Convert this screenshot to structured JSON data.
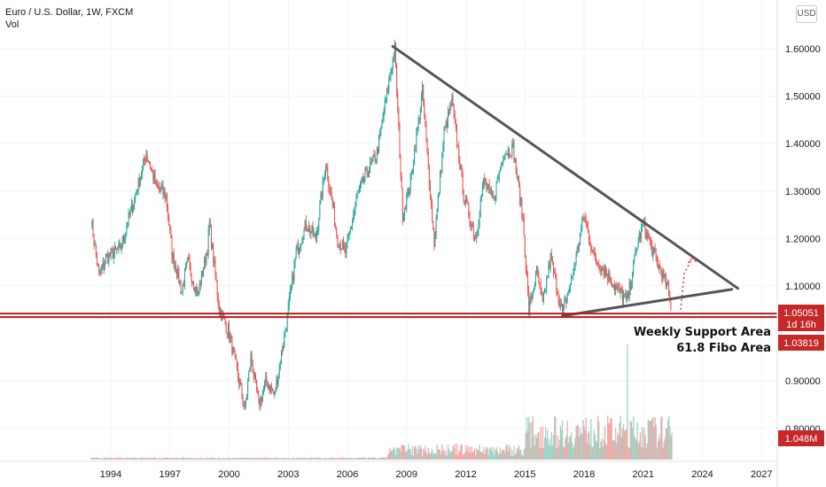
{
  "header": {
    "title": "Euro / U.S. Dollar, 1W, FXCM",
    "subtitle": "Vol"
  },
  "currency_button": "USD",
  "colors": {
    "up": "#26a69a",
    "down": "#ef5350",
    "trendline": "#555555",
    "support": "#b71c1c",
    "badge": "#c62828",
    "vol_up": "#9fd3c7",
    "vol_down": "#f5a7a5"
  },
  "price_badges": [
    {
      "value": "1.05051",
      "sub": "1d 16h"
    },
    {
      "value": "1.03819",
      "sub": ""
    },
    {
      "value": "1.048M",
      "sub": ""
    }
  ],
  "annotations": [
    "Weekly Support Area",
    "61.8 Fibo Area"
  ],
  "chart_data": {
    "type": "candlestick",
    "title": "Euro / U.S. Dollar, 1W, FXCM",
    "ylim": [
      0.78,
      1.65
    ],
    "y_ticks": [
      "1.60000",
      "1.50000",
      "1.40000",
      "1.30000",
      "1.20000",
      "1.10000",
      "0.90000",
      "0.80000"
    ],
    "x_ticks": [
      "1994",
      "1997",
      "2000",
      "2003",
      "2006",
      "2009",
      "2012",
      "2015",
      "2018",
      "2021",
      "2024",
      "2027"
    ],
    "xlim": [
      1993.2,
      2027.8
    ],
    "price_path": [
      [
        1993.0,
        1.24
      ],
      [
        1993.4,
        1.12
      ],
      [
        1993.8,
        1.16
      ],
      [
        1994.5,
        1.18
      ],
      [
        1995.3,
        1.3
      ],
      [
        1995.8,
        1.38
      ],
      [
        1996.3,
        1.31
      ],
      [
        1996.8,
        1.29
      ],
      [
        1997.1,
        1.17
      ],
      [
        1997.6,
        1.09
      ],
      [
        1997.9,
        1.15
      ],
      [
        1998.4,
        1.08
      ],
      [
        1998.9,
        1.18
      ],
      [
        1999.0,
        1.23
      ],
      [
        1999.5,
        1.05
      ],
      [
        2000.0,
        1.0
      ],
      [
        2000.4,
        0.92
      ],
      [
        2000.8,
        0.84
      ],
      [
        2001.1,
        0.95
      ],
      [
        2001.5,
        0.85
      ],
      [
        2001.9,
        0.9
      ],
      [
        2002.3,
        0.87
      ],
      [
        2002.9,
        1.02
      ],
      [
        2003.4,
        1.17
      ],
      [
        2003.9,
        1.23
      ],
      [
        2004.4,
        1.2
      ],
      [
        2004.9,
        1.36
      ],
      [
        2005.5,
        1.2
      ],
      [
        2005.9,
        1.17
      ],
      [
        2006.5,
        1.29
      ],
      [
        2006.9,
        1.33
      ],
      [
        2007.5,
        1.38
      ],
      [
        2007.9,
        1.48
      ],
      [
        2008.4,
        1.6
      ],
      [
        2008.8,
        1.25
      ],
      [
        2009.2,
        1.32
      ],
      [
        2009.8,
        1.51
      ],
      [
        2010.4,
        1.19
      ],
      [
        2010.9,
        1.42
      ],
      [
        2011.3,
        1.49
      ],
      [
        2011.9,
        1.29
      ],
      [
        2012.5,
        1.2
      ],
      [
        2012.9,
        1.32
      ],
      [
        2013.4,
        1.28
      ],
      [
        2013.9,
        1.38
      ],
      [
        2014.4,
        1.39
      ],
      [
        2014.9,
        1.24
      ],
      [
        2015.2,
        1.05
      ],
      [
        2015.6,
        1.13
      ],
      [
        2015.9,
        1.06
      ],
      [
        2016.3,
        1.16
      ],
      [
        2016.9,
        1.04
      ],
      [
        2017.4,
        1.12
      ],
      [
        2018.0,
        1.25
      ],
      [
        2018.5,
        1.16
      ],
      [
        2019.1,
        1.13
      ],
      [
        2019.7,
        1.09
      ],
      [
        2020.2,
        1.07
      ],
      [
        2020.7,
        1.19
      ],
      [
        2021.0,
        1.23
      ],
      [
        2021.5,
        1.17
      ],
      [
        2021.9,
        1.13
      ],
      [
        2022.2,
        1.1
      ],
      [
        2022.45,
        1.05
      ]
    ],
    "trendlines": [
      {
        "name": "descending resistance",
        "from": [
          2008.3,
          1.605
        ],
        "to": [
          2025.8,
          1.095
        ]
      },
      {
        "name": "ascending support",
        "from": [
          2016.9,
          1.037
        ],
        "to": [
          2025.5,
          1.093
        ]
      }
    ],
    "support_level": 1.0382,
    "projection": {
      "from": [
        2022.9,
        1.05
      ],
      "to": [
        2023.5,
        1.16
      ]
    },
    "volume": {
      "label": "Vol",
      "last": "1.048M",
      "spike": 2020.2
    }
  }
}
